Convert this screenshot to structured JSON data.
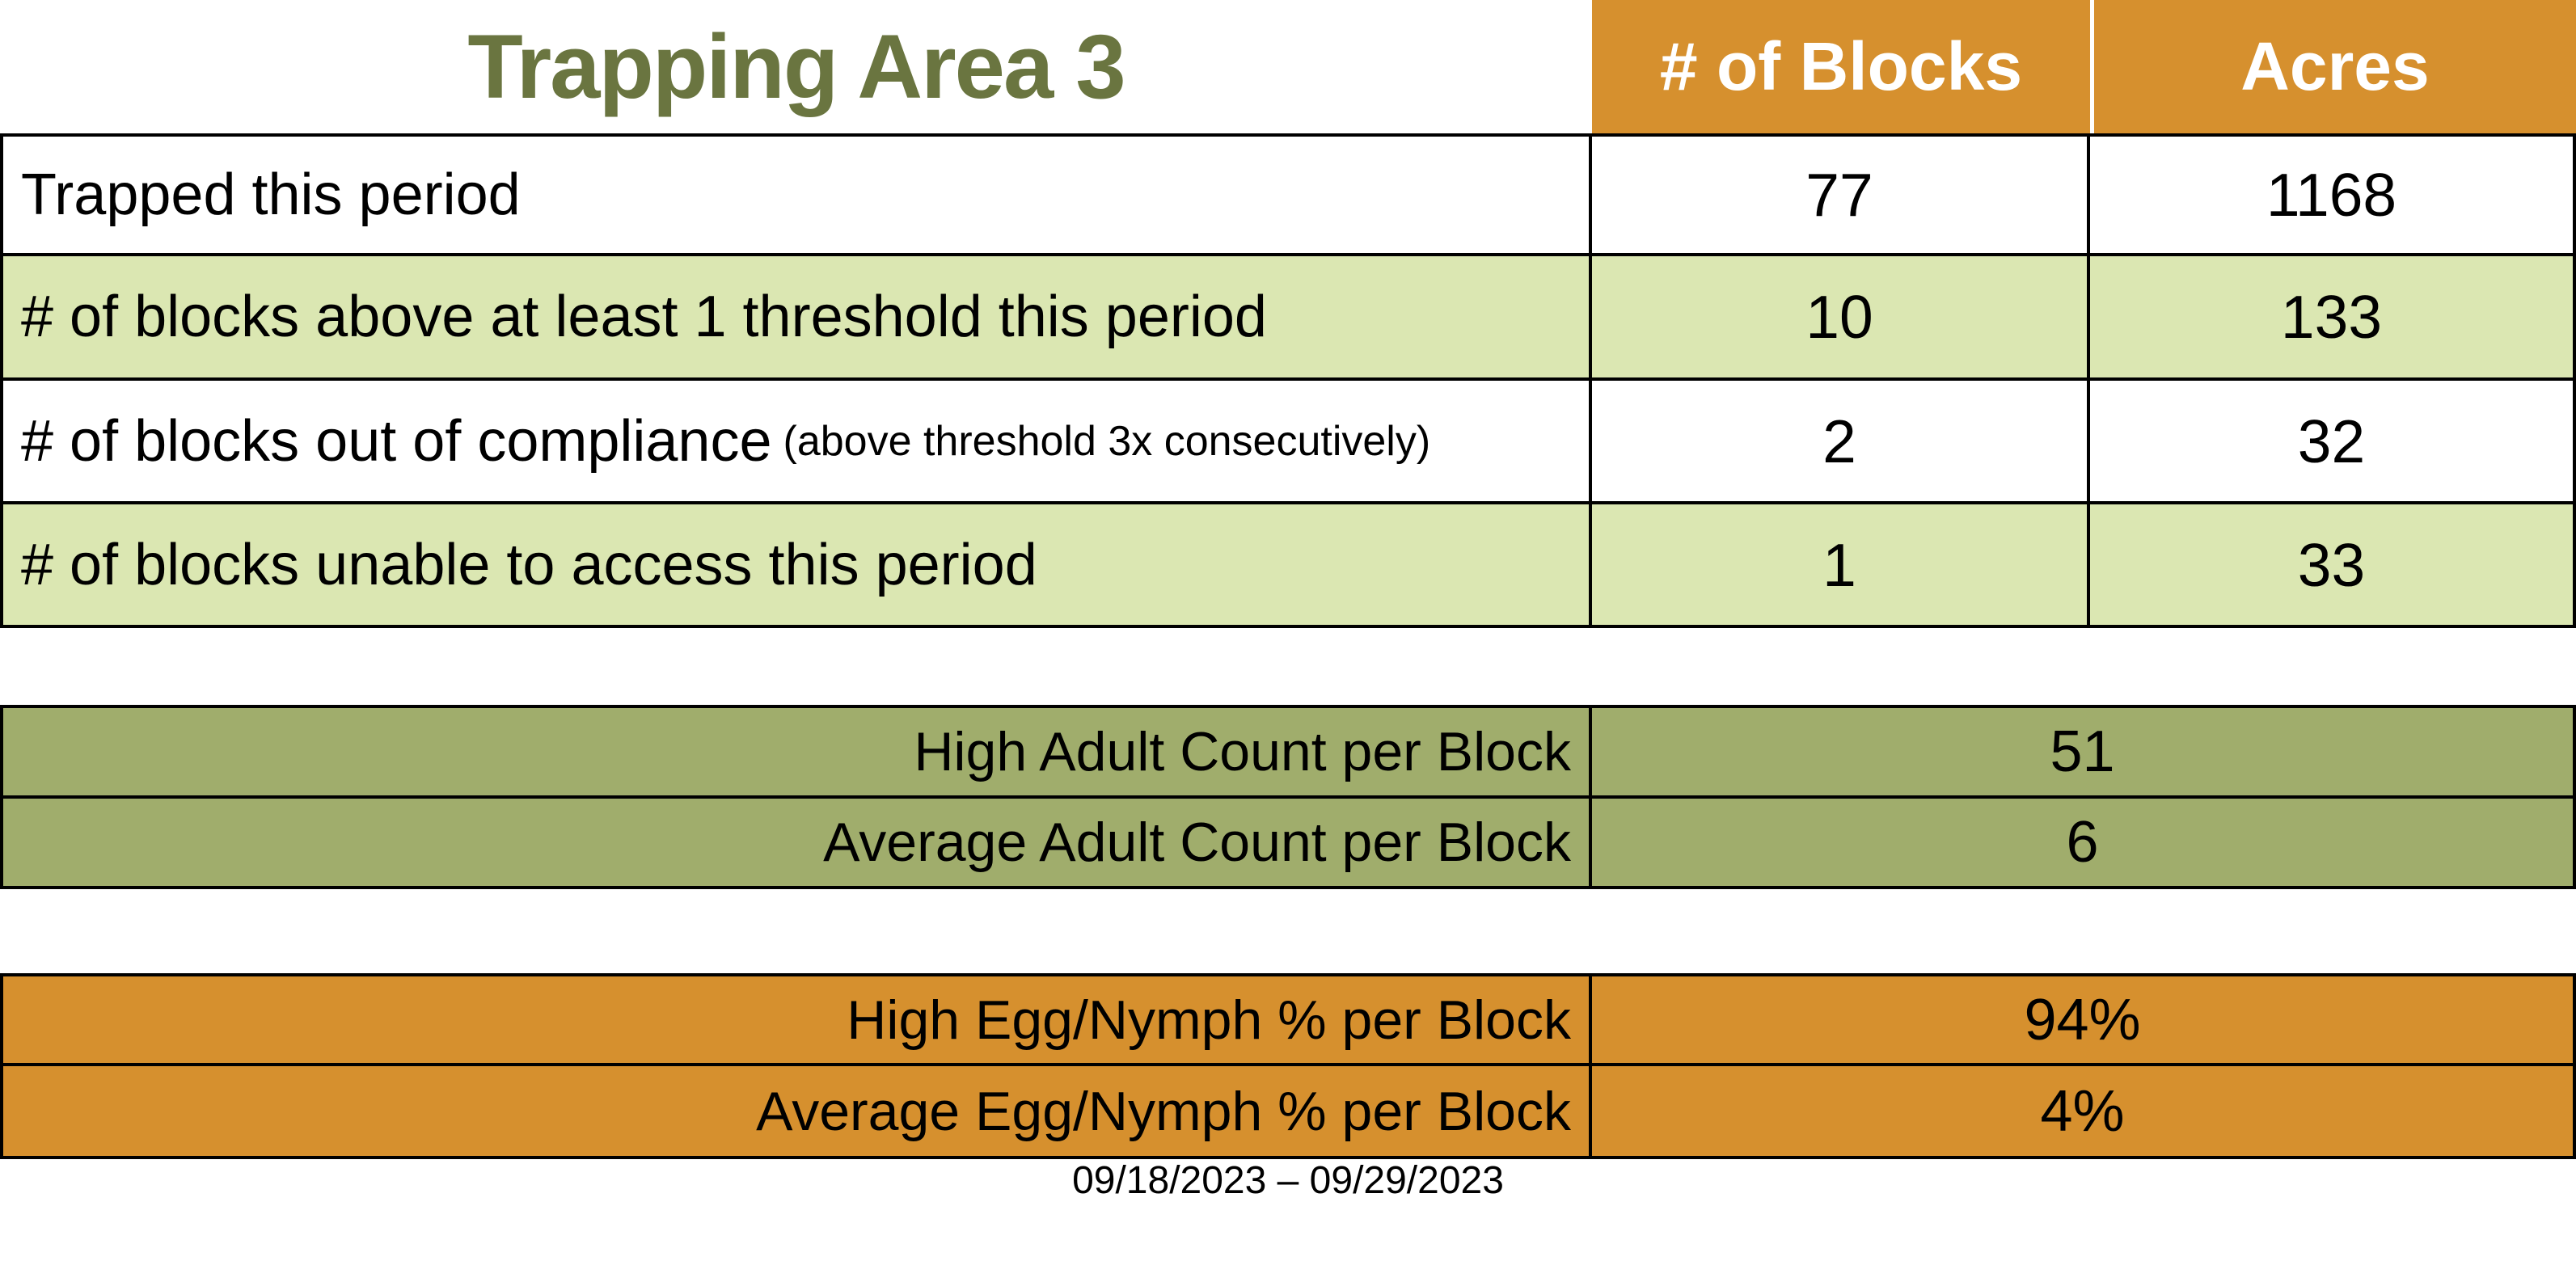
{
  "title": "Trapping Area 3",
  "colors": {
    "title_green": "#6A7540",
    "header_orange": "#D6902E",
    "row_light_green": "#DBE7B2",
    "adult_table_olive": "#A0AD6C",
    "egg_table_orange": "#D6902E",
    "border_black": "#000000"
  },
  "summary_table": {
    "columns": [
      "# of Blocks",
      "Acres"
    ],
    "rows": [
      {
        "label": "Trapped this period",
        "note": "",
        "blocks": "77",
        "acres": "1168"
      },
      {
        "label": "# of blocks above at least 1 threshold this period",
        "note": "",
        "blocks": "10",
        "acres": "133"
      },
      {
        "label": "# of blocks out of compliance",
        "note": "(above threshold 3x consecutively)",
        "blocks": "2",
        "acres": "32"
      },
      {
        "label": "# of blocks unable to access this period",
        "note": "",
        "blocks": "1",
        "acres": "33"
      }
    ]
  },
  "adult_table": {
    "rows": [
      {
        "label": "High Adult Count per Block",
        "value": "51"
      },
      {
        "label": "Average Adult Count per Block",
        "value": "6"
      }
    ]
  },
  "egg_table": {
    "rows": [
      {
        "label": "High Egg/Nymph % per Block",
        "value": "94%"
      },
      {
        "label": "Average Egg/Nymph % per Block",
        "value": "4%"
      }
    ]
  },
  "date_range": "09/18/2023 – 09/29/2023"
}
